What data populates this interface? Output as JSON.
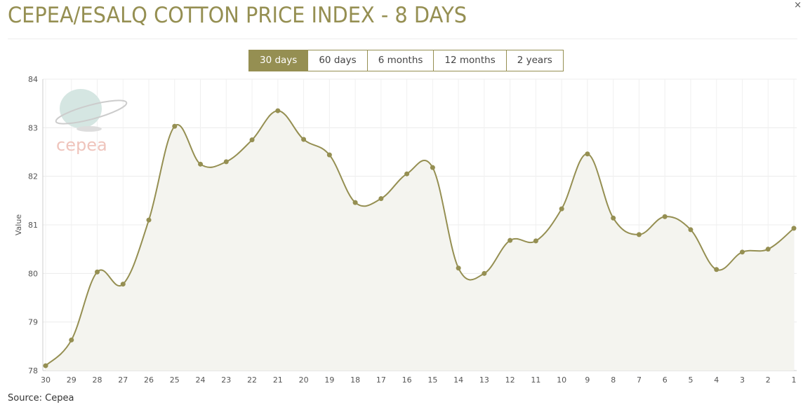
{
  "title": "CEPEA/ESALQ COTTON PRICE INDEX - 8 DAYS",
  "close_label": "×",
  "range_buttons": [
    {
      "label": "30 days",
      "active": true
    },
    {
      "label": "60 days"
    },
    {
      "label": "6 months"
    },
    {
      "label": "12 months"
    },
    {
      "label": "2 years"
    }
  ],
  "source": "Source: Cepea",
  "logo_text": "cepea",
  "colors": {
    "accent": "#958f52",
    "fill": "#f4f4ef"
  },
  "chart_data": {
    "type": "area",
    "title": "CEPEA/ESALQ COTTON PRICE INDEX - 8 DAYS",
    "xlabel": "",
    "ylabel": "Value",
    "ylim": [
      78,
      84
    ],
    "yticks": [
      78,
      79,
      80,
      81,
      82,
      83,
      84
    ],
    "categories": [
      "30",
      "29",
      "28",
      "27",
      "26",
      "25",
      "24",
      "23",
      "22",
      "21",
      "20",
      "19",
      "18",
      "17",
      "16",
      "15",
      "14",
      "13",
      "12",
      "11",
      "10",
      "9",
      "8",
      "7",
      "6",
      "5",
      "4",
      "3",
      "2",
      "1"
    ],
    "values": [
      78.1,
      78.63,
      80.03,
      79.78,
      81.1,
      83.03,
      82.25,
      82.3,
      82.75,
      83.35,
      82.76,
      82.44,
      81.46,
      81.54,
      82.05,
      82.18,
      80.11,
      80.0,
      80.68,
      80.67,
      81.33,
      82.46,
      81.14,
      80.8,
      81.17,
      80.9,
      80.08,
      80.44,
      80.5,
      80.93
    ],
    "grid": true,
    "legend": "none"
  }
}
